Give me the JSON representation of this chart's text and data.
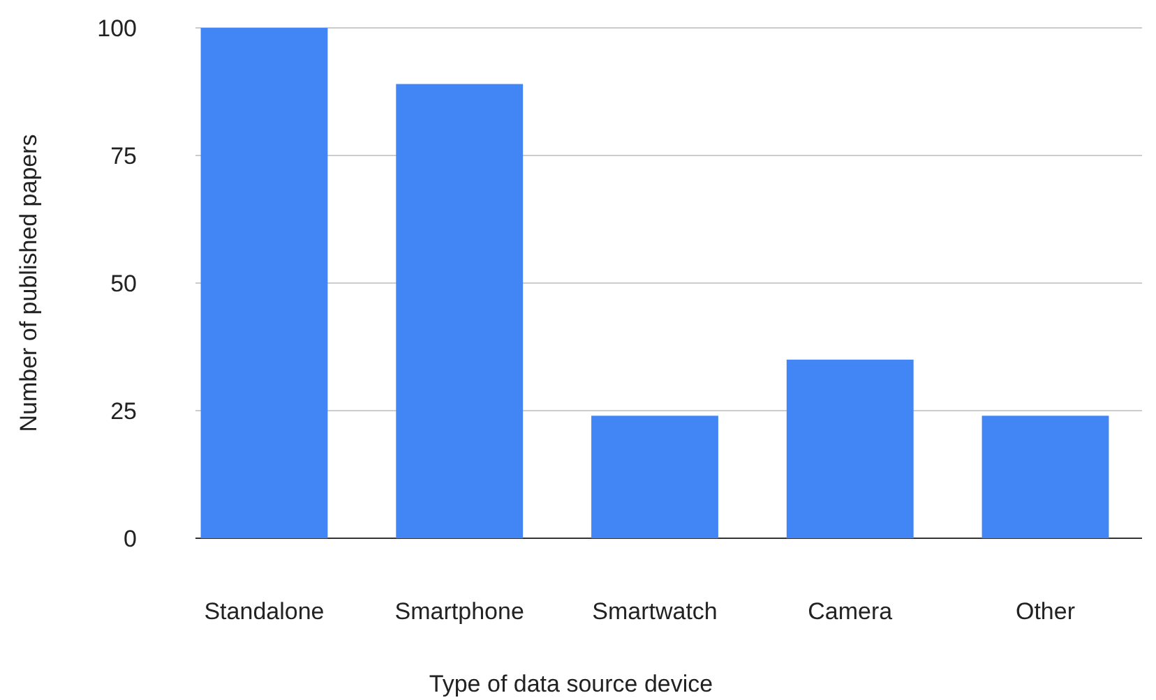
{
  "chart_data": {
    "type": "bar",
    "xlabel": "Type of data source device",
    "ylabel": "Number of published papers",
    "categories": [
      "Standalone",
      "Smartphone",
      "Smartwatch",
      "Camera",
      "Other"
    ],
    "values": [
      100,
      89,
      24,
      35,
      24
    ],
    "color": "#4285f4",
    "ylim": [
      0,
      100
    ],
    "yticks": [
      0,
      25,
      50,
      75,
      100
    ],
    "grid": "y"
  }
}
